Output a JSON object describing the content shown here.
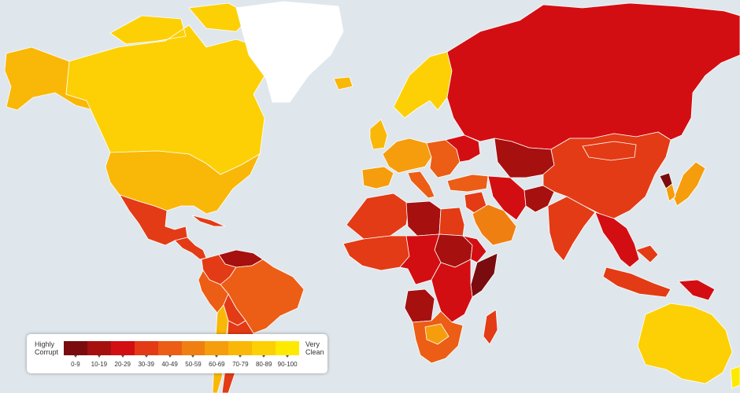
{
  "legend": {
    "low_label_1": "Highly",
    "low_label_2": "Corrupt",
    "high_label_1": "Very",
    "high_label_2": "Clean",
    "bins": [
      {
        "label": "0-9",
        "color": "#7a0c10"
      },
      {
        "label": "10-19",
        "color": "#a6100f"
      },
      {
        "label": "20-29",
        "color": "#d30e12"
      },
      {
        "label": "30-39",
        "color": "#e33b15"
      },
      {
        "label": "40-49",
        "color": "#ec5d15"
      },
      {
        "label": "50-59",
        "color": "#f07f12"
      },
      {
        "label": "60-69",
        "color": "#f59d0c"
      },
      {
        "label": "70-79",
        "color": "#f9b807"
      },
      {
        "label": "80-89",
        "color": "#fcd004"
      },
      {
        "label": "90-100",
        "color": "#fee900"
      }
    ]
  },
  "colors": {
    "ocean": "#dfe7ec",
    "greenland": "#ffffff",
    "border": "#ffffff"
  },
  "regions": [
    {
      "name": "alaska",
      "color": "#f9b807"
    },
    {
      "name": "canada",
      "color": "#fcd004"
    },
    {
      "name": "usa",
      "color": "#f9b807"
    },
    {
      "name": "mexico",
      "color": "#e33b15"
    },
    {
      "name": "central-america",
      "color": "#e33b15"
    },
    {
      "name": "venezuela",
      "color": "#a6100f"
    },
    {
      "name": "colombia",
      "color": "#e33b15"
    },
    {
      "name": "brazil",
      "color": "#ec5d15"
    },
    {
      "name": "peru",
      "color": "#ec5d15"
    },
    {
      "name": "bolivia",
      "color": "#e33b15"
    },
    {
      "name": "chile",
      "color": "#f9b807"
    },
    {
      "name": "argentina",
      "color": "#e33b15"
    },
    {
      "name": "greenland",
      "color": "#ffffff"
    },
    {
      "name": "iceland",
      "color": "#f9b807"
    },
    {
      "name": "scandinavia",
      "color": "#fcd004"
    },
    {
      "name": "uk",
      "color": "#f9b807"
    },
    {
      "name": "western-europe",
      "color": "#f59d0c"
    },
    {
      "name": "iberia",
      "color": "#f59d0c"
    },
    {
      "name": "italy",
      "color": "#ec5d15"
    },
    {
      "name": "eastern-europe",
      "color": "#ec5d15"
    },
    {
      "name": "ukraine",
      "color": "#d30e12"
    },
    {
      "name": "russia",
      "color": "#d30e12"
    },
    {
      "name": "turkey",
      "color": "#ec5d15"
    },
    {
      "name": "middle-east",
      "color": "#e33b15"
    },
    {
      "name": "arabia",
      "color": "#f07f12"
    },
    {
      "name": "iran",
      "color": "#d30e12"
    },
    {
      "name": "central-asia",
      "color": "#a6100f"
    },
    {
      "name": "afghanistan",
      "color": "#a6100f"
    },
    {
      "name": "india",
      "color": "#e33b15"
    },
    {
      "name": "china",
      "color": "#e33b15"
    },
    {
      "name": "mongolia",
      "color": "#e33b15"
    },
    {
      "name": "north-korea",
      "color": "#7a0c10"
    },
    {
      "name": "korea-japan",
      "color": "#f59d0c"
    },
    {
      "name": "southeast-asia",
      "color": "#d30e12"
    },
    {
      "name": "indonesia",
      "color": "#e33b15"
    },
    {
      "name": "papua-new-guinea",
      "color": "#d30e12"
    },
    {
      "name": "australia",
      "color": "#fcd004"
    },
    {
      "name": "new-zealand",
      "color": "#fee900"
    },
    {
      "name": "north-africa-west",
      "color": "#e33b15"
    },
    {
      "name": "libya",
      "color": "#a6100f"
    },
    {
      "name": "egypt",
      "color": "#e33b15"
    },
    {
      "name": "sudan",
      "color": "#a6100f"
    },
    {
      "name": "somalia",
      "color": "#7a0c10"
    },
    {
      "name": "horn-of-africa",
      "color": "#d30e12"
    },
    {
      "name": "west-africa",
      "color": "#e33b15"
    },
    {
      "name": "central-africa",
      "color": "#d30e12"
    },
    {
      "name": "east-africa",
      "color": "#d30e12"
    },
    {
      "name": "angola",
      "color": "#a6100f"
    },
    {
      "name": "southern-africa",
      "color": "#ec5d15"
    },
    {
      "name": "botswana",
      "color": "#f59d0c"
    },
    {
      "name": "madagascar",
      "color": "#e33b15"
    }
  ]
}
